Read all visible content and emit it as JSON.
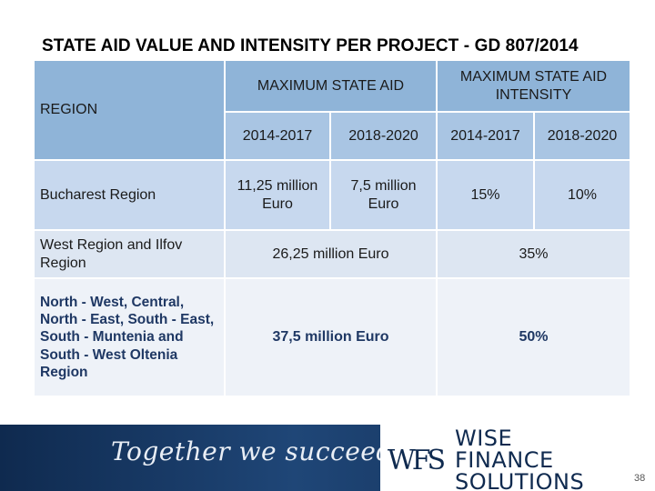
{
  "title": "STATE AID VALUE AND INTENSITY PER PROJECT - GD 807/2014",
  "table": {
    "region_header": "REGION",
    "max_aid_header": "MAXIMUM STATE AID",
    "max_intensity_header": "MAXIMUM STATE AID INTENSITY",
    "periods": [
      "2014-2017",
      "2018-2020",
      "2014-2017",
      "2018-2020"
    ],
    "rows": [
      {
        "region": "Bucharest Region",
        "aid_2014_2017": "11,25 million Euro",
        "aid_2018_2020": "7,5 million Euro",
        "intensity_2014_2017": "15%",
        "intensity_2018_2020": "10%"
      },
      {
        "region": "West Region and Ilfov Region",
        "aid": "26,25 million Euro",
        "intensity": "35%"
      },
      {
        "region": "North - West, Central, North - East, South - East, South - Muntenia and South - West Oltenia Region",
        "aid": "37,5 million Euro",
        "intensity": "50%"
      }
    ]
  },
  "footer": {
    "slogan": "Together we succeed",
    "logo_monogram": "WFS",
    "brand_lines": [
      "WISE",
      "FINANCE",
      "SOLUTIONS"
    ],
    "page_number": "38",
    "colors": {
      "navy": "#0f2a4f",
      "header_blue": "#8fb4d8"
    }
  }
}
